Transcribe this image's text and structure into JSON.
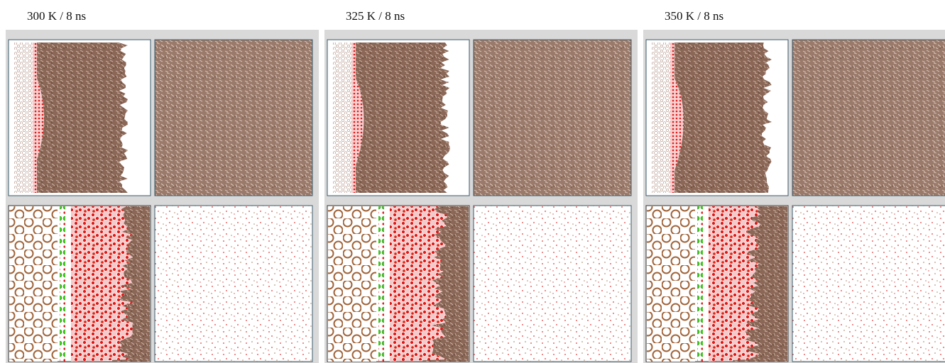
{
  "panels": [
    {
      "title": "300 K / 8 ns"
    },
    {
      "title": "325 K / 8 ns"
    },
    {
      "title": "350 K / 8 ns"
    }
  ]
}
